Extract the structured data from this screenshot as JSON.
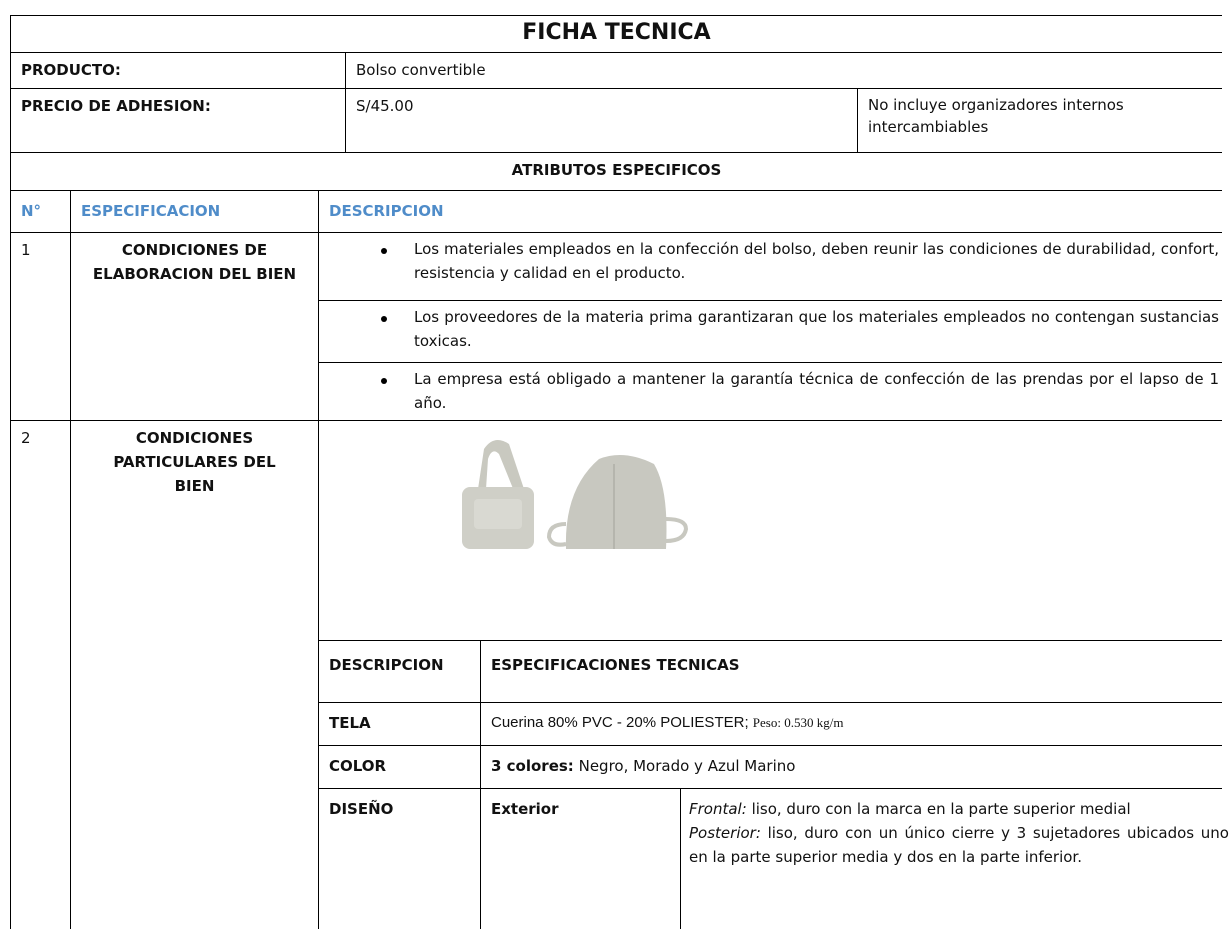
{
  "header": {
    "title": "FICHA TECNICA"
  },
  "product": {
    "label": "PRODUCTO:",
    "value": "Bolso convertible"
  },
  "price": {
    "label": "PRECIO DE ADHESION:",
    "value": "S/45.00",
    "note": "No incluye organizadores internos intercambiables"
  },
  "section_title": "ATRIBUTOS ESPECIFICOS",
  "columns": [
    "N°",
    "ESPECIFICACION",
    "DESCRIPCION"
  ],
  "rows": [
    {
      "number": "1",
      "specification": "CONDICIONES DE ELABORACION DEL BIEN",
      "bullets": [
        "Los materiales empleados en la confección del bolso, deben reunir las condiciones de durabilidad, confort, resistencia y calidad en el producto.",
        "Los proveedores de la materia prima garantizaran que los materiales empleados no contengan sustancias toxicas.",
        "La empresa está obligado a mantener la garantía técnica de confección de las prendas por el lapso de 1 año."
      ]
    },
    {
      "number": "2",
      "specification": "CONDICIONES PARTICULARES DEL BIEN",
      "details": {
        "columns": [
          "DESCRIPCION",
          "ESPECIFICACIONES TECNICAS"
        ],
        "tela": {
          "label": "TELA",
          "value": "Cuerina 80% PVC - 20% POLIESTER;",
          "weight": "Peso:  0.530 kg/m"
        },
        "color": {
          "label": "COLOR",
          "lead": "3 colores:",
          "value": "Negro, Morado y Azul Marino"
        },
        "design": {
          "label": "DISEÑO",
          "part": "Exterior",
          "items": [
            {
              "term": "Frontal:",
              "text": "liso, duro con la marca en la parte superior medial"
            },
            {
              "term": "Posterior:",
              "text": "liso, duro con un único cierre y 3 sujetadores ubicados uno en la parte superior media y dos en la parte inferior."
            }
          ]
        }
      }
    }
  ]
}
